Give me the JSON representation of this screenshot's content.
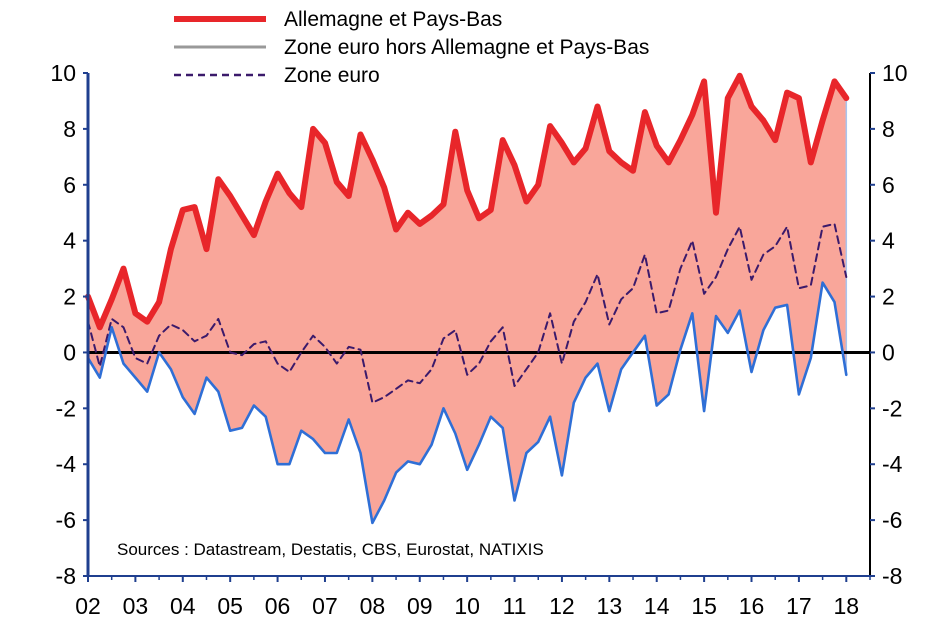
{
  "chart_data": {
    "type": "line",
    "title": "",
    "xlabel": "",
    "ylabel": "",
    "ylim": [
      -8,
      10
    ],
    "xlim": [
      2002,
      2018.5
    ],
    "y_ticks": [
      "-8",
      "-6",
      "-4",
      "-2",
      "0",
      "2",
      "4",
      "6",
      "8",
      "10"
    ],
    "x_ticks": [
      "02",
      "03",
      "04",
      "05",
      "06",
      "07",
      "08",
      "09",
      "10",
      "11",
      "12",
      "13",
      "14",
      "15",
      "16",
      "17",
      "18"
    ],
    "legend_position": "top-left",
    "source": "Sources : Datastream, Destatis, CBS, Eurostat, NATIXIS",
    "fill_between": {
      "upper": "Allemagne et Pays-Bas",
      "lower": "Zone euro hors Allemagne et Pays-Bas",
      "color": "#f9a69a"
    },
    "colors": {
      "germany_nl": "#e8262a",
      "rest": "#2f6fd6",
      "zone": "#3b1a6b",
      "legend_gray": "#999999",
      "fill": "#f9a69a",
      "axis_left": "#1f3f8f"
    },
    "series": [
      {
        "name": "Allemagne et Pays-Bas",
        "style": "solid-thick",
        "x": [
          2002.0,
          2002.25,
          2002.5,
          2002.75,
          2003.0,
          2003.25,
          2003.5,
          2003.75,
          2004.0,
          2004.25,
          2004.5,
          2004.75,
          2005.0,
          2005.25,
          2005.5,
          2005.75,
          2006.0,
          2006.25,
          2006.5,
          2006.75,
          2007.0,
          2007.25,
          2007.5,
          2007.75,
          2008.0,
          2008.25,
          2008.5,
          2008.75,
          2009.0,
          2009.25,
          2009.5,
          2009.75,
          2010.0,
          2010.25,
          2010.5,
          2010.75,
          2011.0,
          2011.25,
          2011.5,
          2011.75,
          2012.0,
          2012.25,
          2012.5,
          2012.75,
          2013.0,
          2013.25,
          2013.5,
          2013.75,
          2014.0,
          2014.25,
          2014.5,
          2014.75,
          2015.0,
          2015.25,
          2015.5,
          2015.75,
          2016.0,
          2016.25,
          2016.5,
          2016.75,
          2017.0,
          2017.25,
          2017.5,
          2017.75,
          2018.0
        ],
        "values": [
          2.0,
          0.9,
          1.9,
          3.0,
          1.4,
          1.1,
          1.8,
          3.7,
          5.1,
          5.2,
          3.7,
          6.2,
          5.6,
          4.9,
          4.2,
          5.4,
          6.4,
          5.7,
          5.2,
          8.0,
          7.5,
          6.1,
          5.6,
          7.8,
          6.9,
          5.9,
          4.4,
          5.0,
          4.6,
          4.9,
          5.3,
          7.9,
          5.8,
          4.8,
          5.1,
          7.6,
          6.7,
          5.4,
          6.0,
          8.1,
          7.5,
          6.8,
          7.3,
          8.8,
          7.2,
          6.8,
          6.5,
          8.6,
          7.4,
          6.8,
          7.6,
          8.5,
          9.7,
          5.0,
          9.1,
          9.9,
          8.8,
          8.3,
          7.6,
          9.3,
          9.1,
          6.8,
          8.3,
          9.7,
          9.1
        ]
      },
      {
        "name": "Zone euro hors Allemagne et Pays-Bas",
        "style": "solid-thin",
        "x": [
          2002.0,
          2002.25,
          2002.5,
          2002.75,
          2003.0,
          2003.25,
          2003.5,
          2003.75,
          2004.0,
          2004.25,
          2004.5,
          2004.75,
          2005.0,
          2005.25,
          2005.5,
          2005.75,
          2006.0,
          2006.25,
          2006.5,
          2006.75,
          2007.0,
          2007.25,
          2007.5,
          2007.75,
          2008.0,
          2008.25,
          2008.5,
          2008.75,
          2009.0,
          2009.25,
          2009.5,
          2009.75,
          2010.0,
          2010.25,
          2010.5,
          2010.75,
          2011.0,
          2011.25,
          2011.5,
          2011.75,
          2012.0,
          2012.25,
          2012.5,
          2012.75,
          2013.0,
          2013.25,
          2013.5,
          2013.75,
          2014.0,
          2014.25,
          2014.5,
          2014.75,
          2015.0,
          2015.25,
          2015.5,
          2015.75,
          2016.0,
          2016.25,
          2016.5,
          2016.75,
          2017.0,
          2017.25,
          2017.5,
          2017.75,
          2018.0
        ],
        "values": [
          -0.2,
          -0.9,
          0.9,
          -0.4,
          -0.9,
          -1.4,
          0.0,
          -0.6,
          -1.6,
          -2.2,
          -0.9,
          -1.4,
          -2.8,
          -2.7,
          -1.9,
          -2.3,
          -4.0,
          -4.0,
          -2.8,
          -3.1,
          -3.6,
          -3.6,
          -2.4,
          -3.6,
          -6.1,
          -5.3,
          -4.3,
          -3.9,
          -4.0,
          -3.3,
          -2.0,
          -2.9,
          -4.2,
          -3.3,
          -2.3,
          -2.7,
          -5.3,
          -3.6,
          -3.2,
          -2.3,
          -4.4,
          -1.8,
          -0.9,
          -0.4,
          -2.1,
          -0.6,
          0.0,
          0.6,
          -1.9,
          -1.5,
          0.1,
          1.4,
          -2.1,
          1.3,
          0.7,
          1.5,
          -0.7,
          0.8,
          1.6,
          1.7,
          -1.5,
          -0.2,
          2.5,
          1.8,
          -0.8
        ]
      },
      {
        "name": "Zone euro",
        "style": "dashed",
        "x": [
          2002.0,
          2002.25,
          2002.5,
          2002.75,
          2003.0,
          2003.25,
          2003.5,
          2003.75,
          2004.0,
          2004.25,
          2004.5,
          2004.75,
          2005.0,
          2005.25,
          2005.5,
          2005.75,
          2006.0,
          2006.25,
          2006.5,
          2006.75,
          2007.0,
          2007.25,
          2007.5,
          2007.75,
          2008.0,
          2008.25,
          2008.5,
          2008.75,
          2009.0,
          2009.25,
          2009.5,
          2009.75,
          2010.0,
          2010.25,
          2010.5,
          2010.75,
          2011.0,
          2011.25,
          2011.5,
          2011.75,
          2012.0,
          2012.25,
          2012.5,
          2012.75,
          2013.0,
          2013.25,
          2013.5,
          2013.75,
          2014.0,
          2014.25,
          2014.5,
          2014.75,
          2015.0,
          2015.25,
          2015.5,
          2015.75,
          2016.0,
          2016.25,
          2016.5,
          2016.75,
          2017.0,
          2017.25,
          2017.5,
          2017.75,
          2018.0
        ],
        "values": [
          1.1,
          -0.5,
          1.2,
          0.9,
          -0.2,
          -0.4,
          0.6,
          1.0,
          0.8,
          0.4,
          0.6,
          1.2,
          0.0,
          -0.1,
          0.3,
          0.4,
          -0.4,
          -0.7,
          0.0,
          0.6,
          0.2,
          -0.4,
          0.2,
          0.1,
          -1.8,
          -1.6,
          -1.3,
          -1.0,
          -1.1,
          -0.6,
          0.5,
          0.8,
          -0.8,
          -0.4,
          0.4,
          0.9,
          -1.2,
          -0.6,
          0.0,
          1.4,
          -0.4,
          1.1,
          1.8,
          2.8,
          1.0,
          1.9,
          2.3,
          3.5,
          1.4,
          1.5,
          3.0,
          4.0,
          2.1,
          2.7,
          3.7,
          4.5,
          2.6,
          3.5,
          3.8,
          4.5,
          2.3,
          2.4,
          4.5,
          4.6,
          2.7
        ]
      }
    ]
  }
}
